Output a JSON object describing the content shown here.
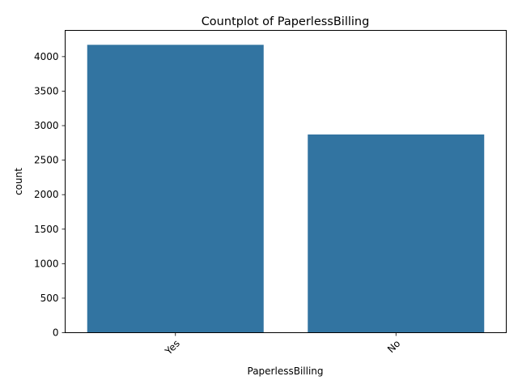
{
  "chart_data": {
    "type": "bar",
    "title": "Countplot of PaperlessBilling",
    "xlabel": "PaperlessBilling",
    "ylabel": "count",
    "categories": [
      "Yes",
      "No"
    ],
    "values": [
      4171,
      2872
    ],
    "ylim": [
      0,
      4380
    ],
    "yticks": [
      0,
      500,
      1000,
      1500,
      2000,
      2500,
      3000,
      3500,
      4000
    ],
    "xtick_rotation_deg": 45,
    "grid": false,
    "legend": "none",
    "bar_color": "#3274a1"
  }
}
